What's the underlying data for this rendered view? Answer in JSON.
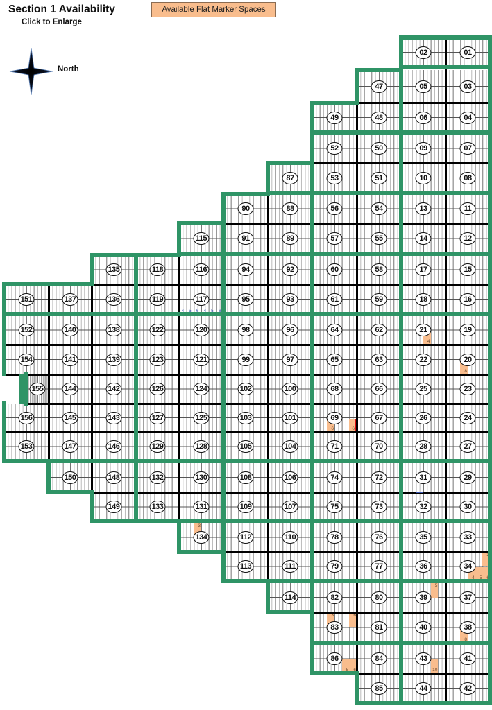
{
  "header": {
    "title": "Section 1 Availability",
    "subtitle": "Click to Enlarge",
    "legend_label": "Available Flat Marker Spaces",
    "compass_label": "North"
  },
  "colors": {
    "block_border": "#2f9466",
    "lot_border": "#000000",
    "available_space": "#f9bd8d",
    "highlight_edge": "#e01010",
    "blue_label": "#3a55b0"
  },
  "icons": {
    "compass": "compass-star-icon"
  },
  "lots": [
    [
      "01",
      "02"
    ],
    [
      "03",
      "05",
      "47"
    ],
    [
      "04",
      "06",
      "48",
      "49"
    ],
    [
      "07",
      "09",
      "50",
      "52"
    ],
    [
      "08",
      "10",
      "51",
      "53",
      "87"
    ],
    [
      "11",
      "13",
      "54",
      "56",
      "88",
      "90"
    ],
    [
      "12",
      "14",
      "55",
      "57",
      "89",
      "91",
      "115"
    ],
    [
      "15",
      "17",
      "58",
      "60",
      "92",
      "94",
      "116",
      "118",
      "135"
    ],
    [
      "16",
      "18",
      "59",
      "61",
      "93",
      "95",
      "117",
      "119",
      "136",
      "137",
      "151"
    ],
    [
      "19",
      "21",
      "62",
      "64",
      "96",
      "98",
      "120",
      "122",
      "138",
      "140",
      "152"
    ],
    [
      "20",
      "22",
      "63",
      "65",
      "97",
      "99",
      "121",
      "123",
      "139",
      "141",
      "154"
    ],
    [
      "23",
      "25",
      "66",
      "68",
      "100",
      "102",
      "124",
      "126",
      "142",
      "144",
      "155"
    ],
    [
      "24",
      "26",
      "67",
      "69",
      "101",
      "103",
      "125",
      "127",
      "143",
      "145",
      "156"
    ],
    [
      "27",
      "28",
      "70",
      "71",
      "104",
      "105",
      "128",
      "129",
      "146",
      "147",
      "153"
    ],
    [
      "29",
      "31",
      "72",
      "74",
      "106",
      "108",
      "130",
      "132",
      "148",
      "150"
    ],
    [
      "30",
      "32",
      "73",
      "75",
      "107",
      "109",
      "131",
      "133",
      "149"
    ],
    [
      "33",
      "35",
      "76",
      "78",
      "110",
      "112",
      "134"
    ],
    [
      "34",
      "36",
      "77",
      "79",
      "111",
      "113"
    ],
    [
      "37",
      "39",
      "80",
      "82",
      "114"
    ],
    [
      "38",
      "40",
      "81",
      "83"
    ],
    [
      "41",
      "43",
      "84",
      "86"
    ],
    [
      "42",
      "44",
      "85"
    ]
  ],
  "available_spaces": [
    {
      "lot": "21",
      "space_col": 3,
      "space_row": 1,
      "label": "4"
    },
    {
      "lot": "20",
      "space_col": 2,
      "space_row": 1,
      "label": "8"
    },
    {
      "lot": "69",
      "space_col": 2,
      "space_row": 1,
      "label": "6"
    },
    {
      "lot": "69",
      "space_col": 5,
      "space_row": 1,
      "label": "6",
      "flagged": true
    },
    {
      "lot": "34",
      "space_col": 5,
      "space_row": 0,
      "label": "3"
    },
    {
      "lot": "34",
      "space_col": 3,
      "space_row": 1,
      "label": "4"
    },
    {
      "lot": "34",
      "space_col": 4,
      "space_row": 1,
      "label": "5"
    },
    {
      "lot": "34",
      "space_col": 5,
      "space_row": 1,
      "label": "6"
    },
    {
      "lot": "39",
      "space_col": 4,
      "space_row": 0,
      "label": "5"
    },
    {
      "lot": "83",
      "space_col": 2,
      "space_row": 0,
      "label": "3"
    },
    {
      "lot": "83",
      "space_col": 5,
      "space_row": 0,
      "label": "6"
    },
    {
      "lot": "38",
      "space_col": 2,
      "space_row": 1,
      "label": "8"
    },
    {
      "lot": "86",
      "space_col": 4,
      "space_row": 1,
      "label": "5"
    },
    {
      "lot": "86",
      "space_col": 5,
      "space_row": 1,
      "label": "6"
    },
    {
      "lot": "43",
      "space_col": 4,
      "space_row": 1,
      "label": "10"
    },
    {
      "lot": "134",
      "space_col": 2,
      "space_row": 0,
      "label": "3"
    }
  ],
  "space_labels": [
    {
      "lot": "117",
      "labels": [
        "4",
        "5",
        "6",
        "4",
        "5",
        "6"
      ]
    }
  ],
  "blue_marks": [
    {
      "lot": "31",
      "space_col": 2,
      "space_row": 1
    }
  ]
}
